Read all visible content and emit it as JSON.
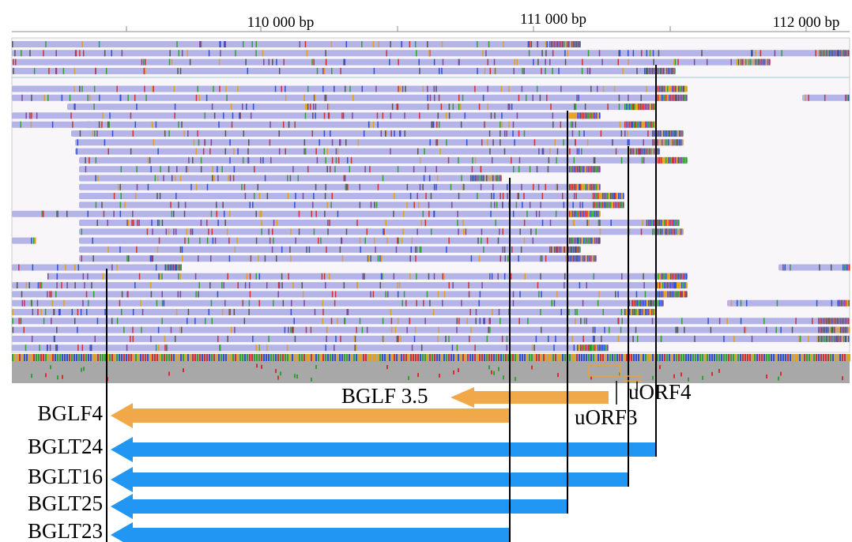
{
  "ruler": {
    "labels": [
      "110 000 bp",
      "111 000 bp",
      "112 000 bp"
    ]
  },
  "features": {
    "bglf35": "BGLF 3.5",
    "uorf4": "uORF4",
    "uorf3": "uORF3"
  },
  "transcripts": [
    "BGLF4",
    "BGLT24",
    "BGLT16",
    "BGLT25",
    "BGLT23"
  ]
}
